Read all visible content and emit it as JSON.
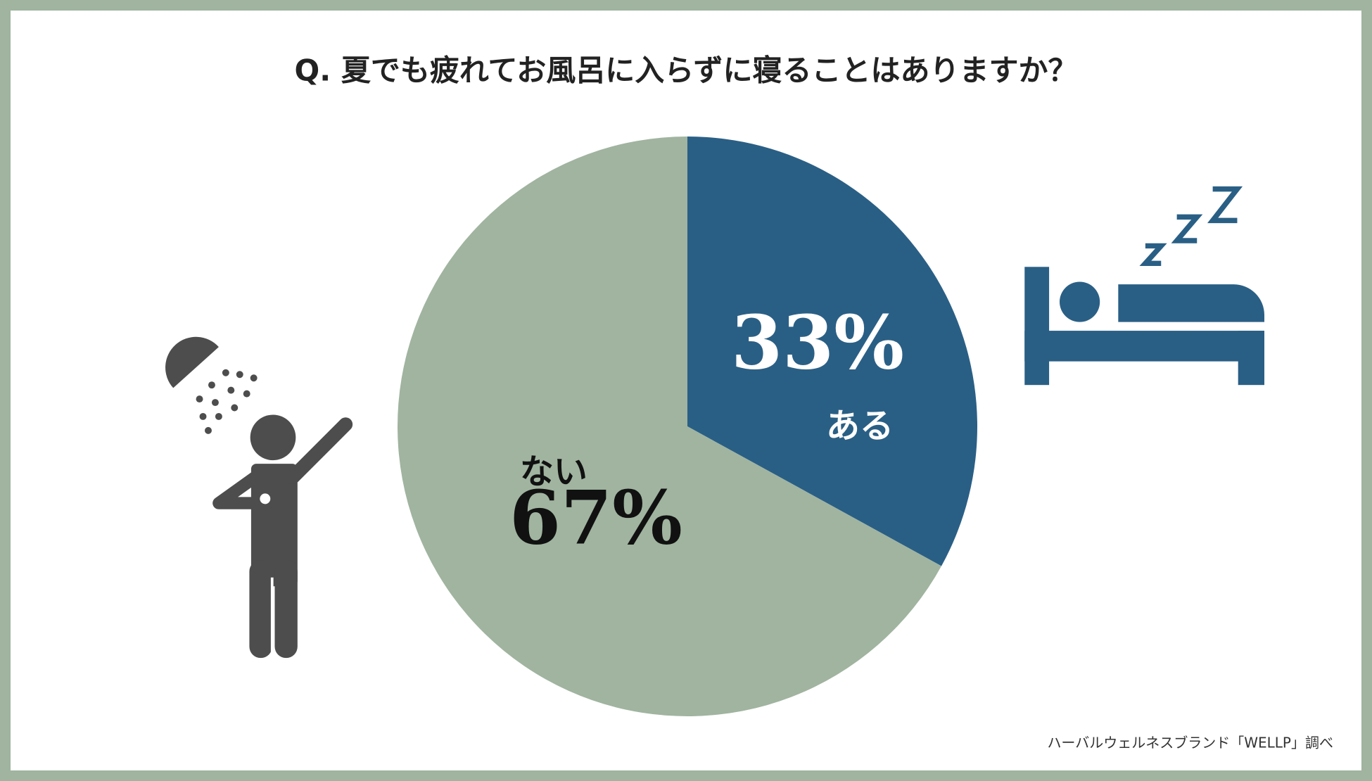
{
  "chart_data": {
    "type": "pie",
    "title": "Q. 夏でも疲れてお風呂に入らずに寝ることはありますか？",
    "categories": [
      "ある",
      "ない"
    ],
    "values": [
      33,
      67
    ],
    "value_labels": [
      "33%",
      "67%"
    ],
    "colors": [
      "#2a5f85",
      "#a0b4a0"
    ],
    "source": "ハーバルウェルネスブランド「WELLP」調べ"
  }
}
